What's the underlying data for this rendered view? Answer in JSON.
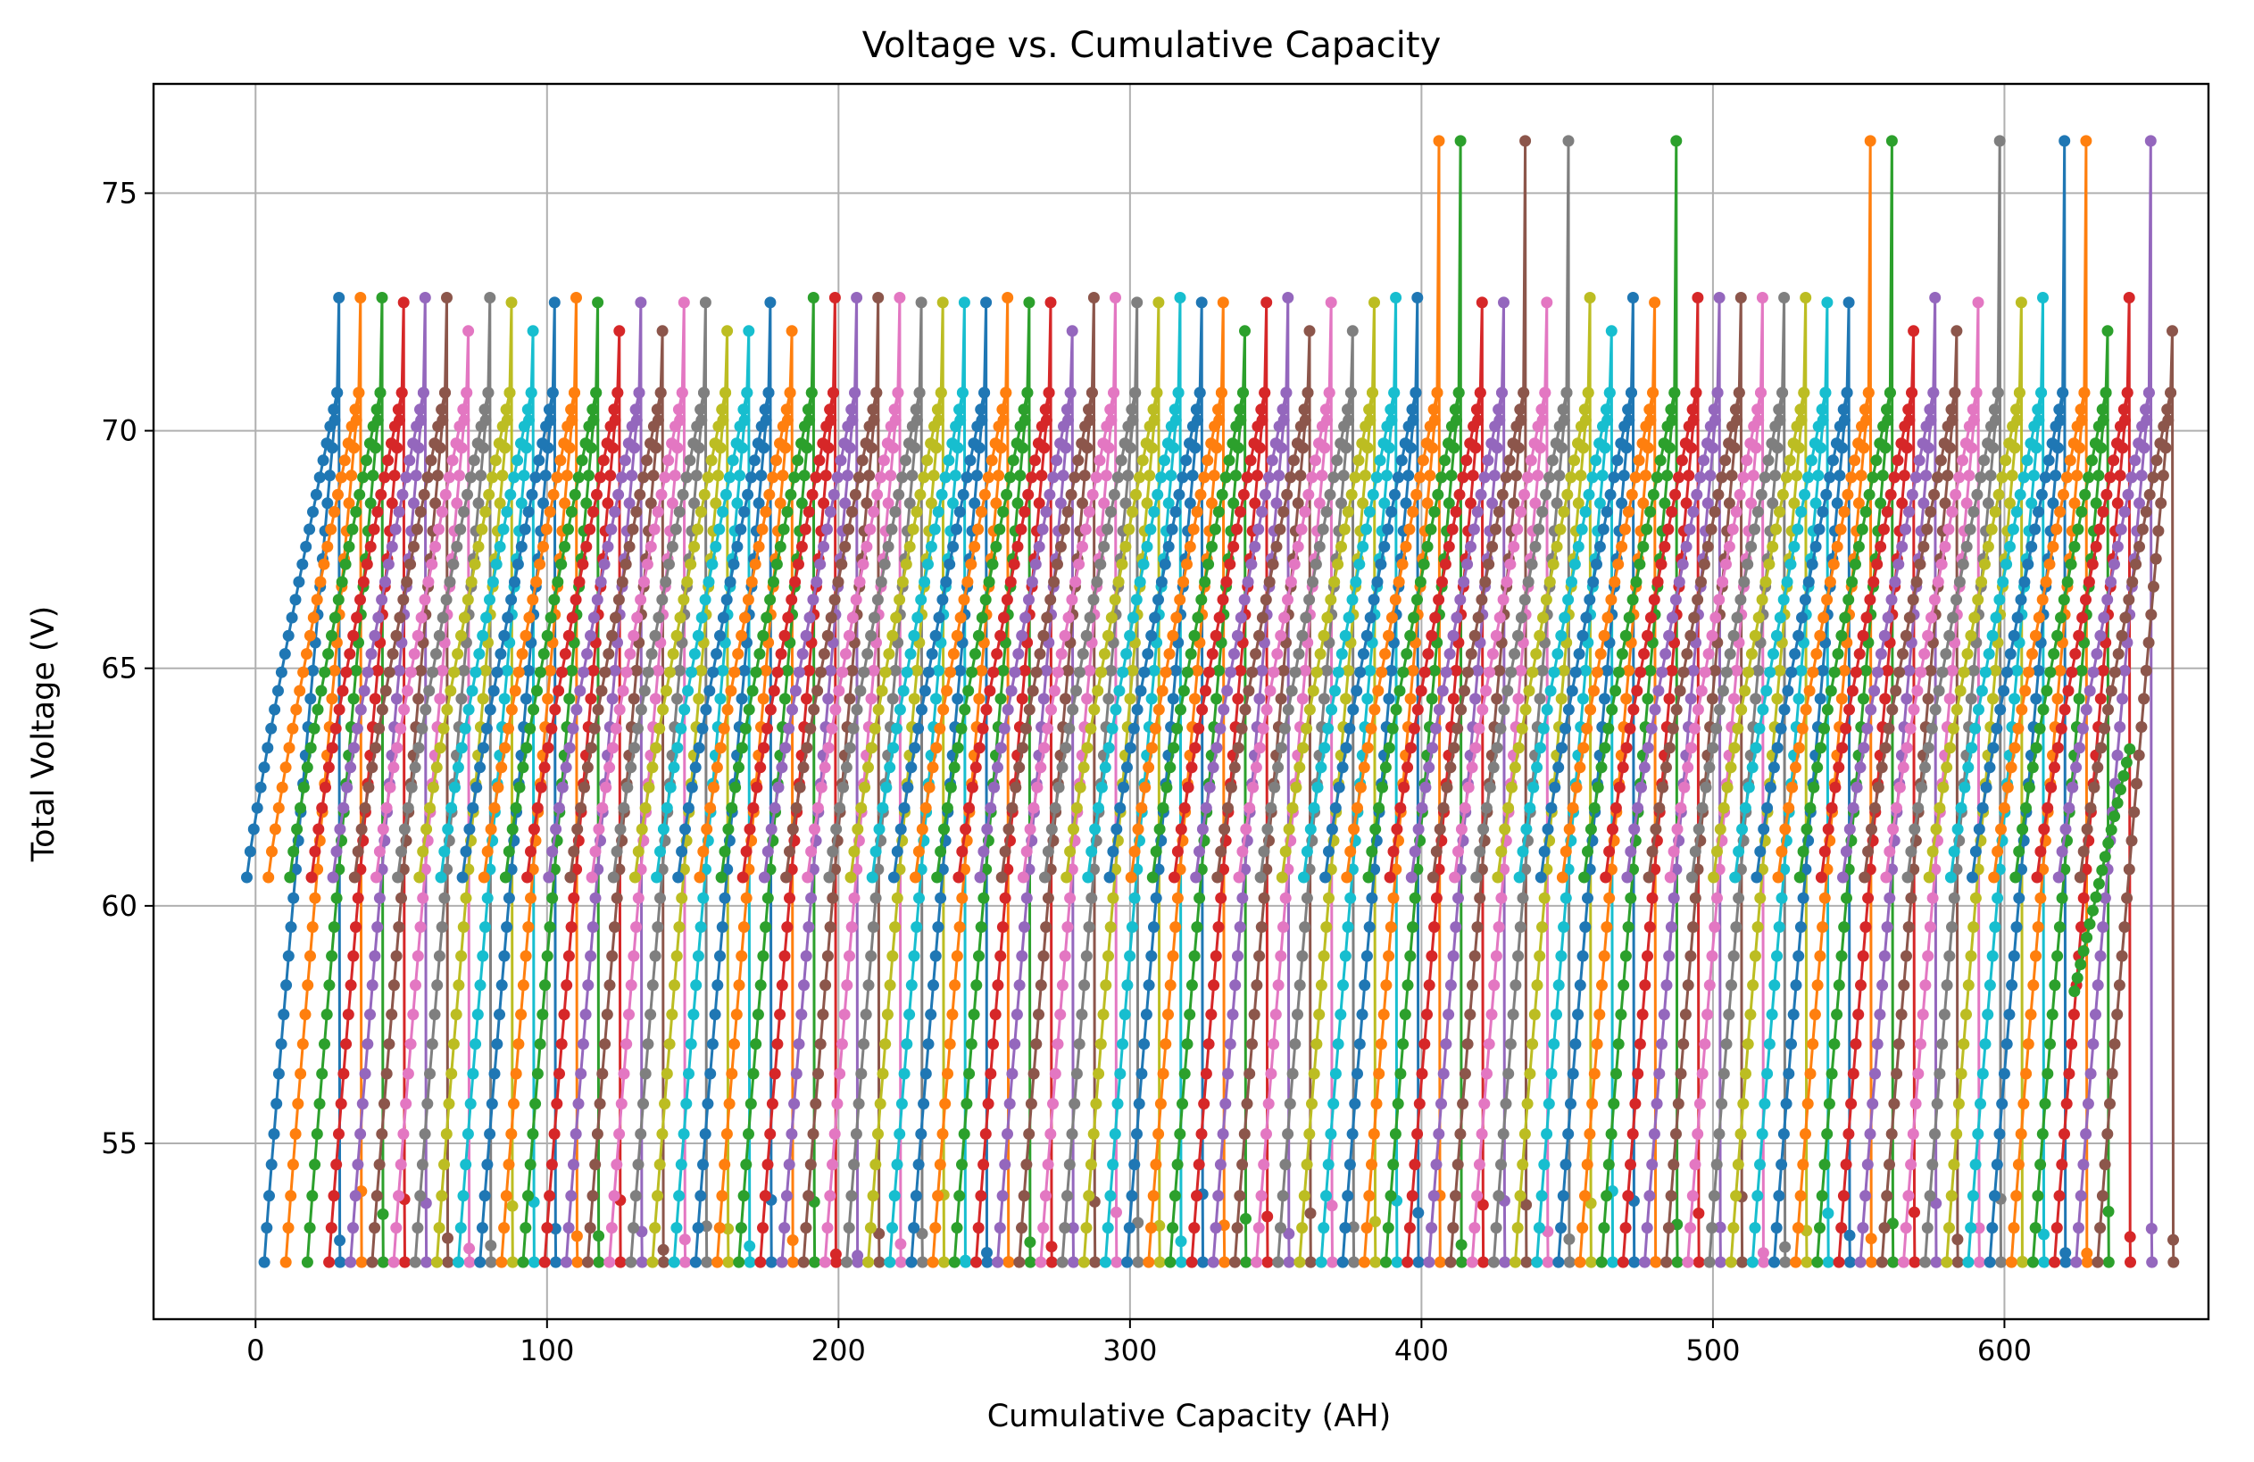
{
  "chart_data": {
    "type": "line",
    "title": "Voltage vs. Cumulative Capacity",
    "xlabel": "Cumulative Capacity (AH)",
    "ylabel": "Total Voltage (V)",
    "xlim": [
      -35,
      670
    ],
    "ylim": [
      51.3,
      77.3
    ],
    "xticks": [
      0,
      100,
      200,
      300,
      400,
      500,
      600
    ],
    "yticks": [
      55,
      60,
      65,
      70,
      75
    ],
    "grid": true,
    "markers": true,
    "palette": [
      "#1f77b4",
      "#ff7f0e",
      "#2ca02c",
      "#d62728",
      "#9467bd",
      "#8c564b",
      "#e377c2",
      "#7f7f7f",
      "#bcbd22",
      "#17becf"
    ],
    "cycle_count": 86,
    "cycle_spacing_ah": 7.4,
    "charge": {
      "start_v": 60.6,
      "plateau_v": 70.8,
      "span_ah": 31,
      "top_spike_v": [
        72.1,
        72.7,
        72.8,
        76.1
      ]
    },
    "discharge": {
      "start_v": 52.5,
      "end_v": 70.8,
      "span_ah": 25
    },
    "first_cycle_start_ah": -3,
    "last_cycle_end_ah": 643,
    "final_partial_cycle": {
      "start_ah": 624,
      "start_v": 58.2,
      "end_ah": 643,
      "end_v": 63.3
    }
  }
}
